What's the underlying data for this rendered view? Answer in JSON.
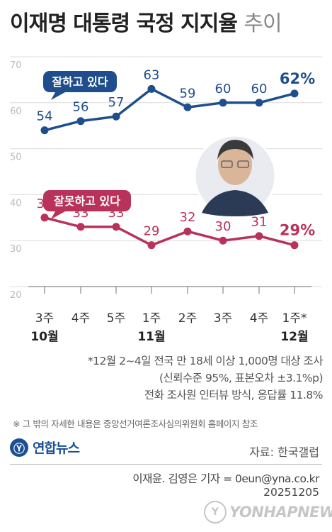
{
  "header": {
    "title_main": "이재명 대통령 국정 지지율",
    "title_light": "추이"
  },
  "chart_data": {
    "type": "line",
    "title": "이재명 대통령 국정 지지율 추이",
    "categories": [
      "3주",
      "4주",
      "5주",
      "1주",
      "2주",
      "3주",
      "4주",
      "1주*"
    ],
    "month_labels": [
      {
        "index": 0,
        "label": "10월"
      },
      {
        "index": 3,
        "label": "11월"
      },
      {
        "index": 7,
        "label": "12월"
      }
    ],
    "series": [
      {
        "name": "잘하고 있다",
        "color": "#1f4e8c",
        "values": [
          54,
          56,
          57,
          63,
          59,
          60,
          60,
          62
        ],
        "last_label": "62%"
      },
      {
        "name": "잘못하고 있다",
        "color": "#b8325a",
        "values": [
          35,
          33,
          33,
          29,
          32,
          30,
          31,
          29
        ],
        "last_label": "29%"
      }
    ],
    "y_ticks": [
      70,
      60,
      50,
      40,
      30,
      20
    ],
    "ylim": [
      20,
      70
    ],
    "grid": true,
    "grid_color": "#dcdcdc"
  },
  "notes": {
    "line1": "*12월 2~4일 전국 만 18세 이상 1,000명 대상 조사",
    "line2": "(신뢰수준 95%, 표본오차 ±3.1%p)",
    "line3": "전화 조사원 인터뷰 방식, 응답률 11.8%"
  },
  "footnote": "※ 그 밖의 자세한 내용은 중앙선거여론조사심의위원회 홈페이지 참조",
  "logo": {
    "mark": "Ⓨ",
    "text": "연합뉴스"
  },
  "source": "자료: 한국갤럽",
  "byline": "이재윤. 김영은 기자 = 0eun@yna.co.kr",
  "date": "20251205",
  "watermark": {
    "text": "YONHAPNEWS"
  },
  "colors": {
    "approve": "#1f4e8c",
    "disapprove": "#b8325a",
    "grid": "#dcdcdc"
  }
}
